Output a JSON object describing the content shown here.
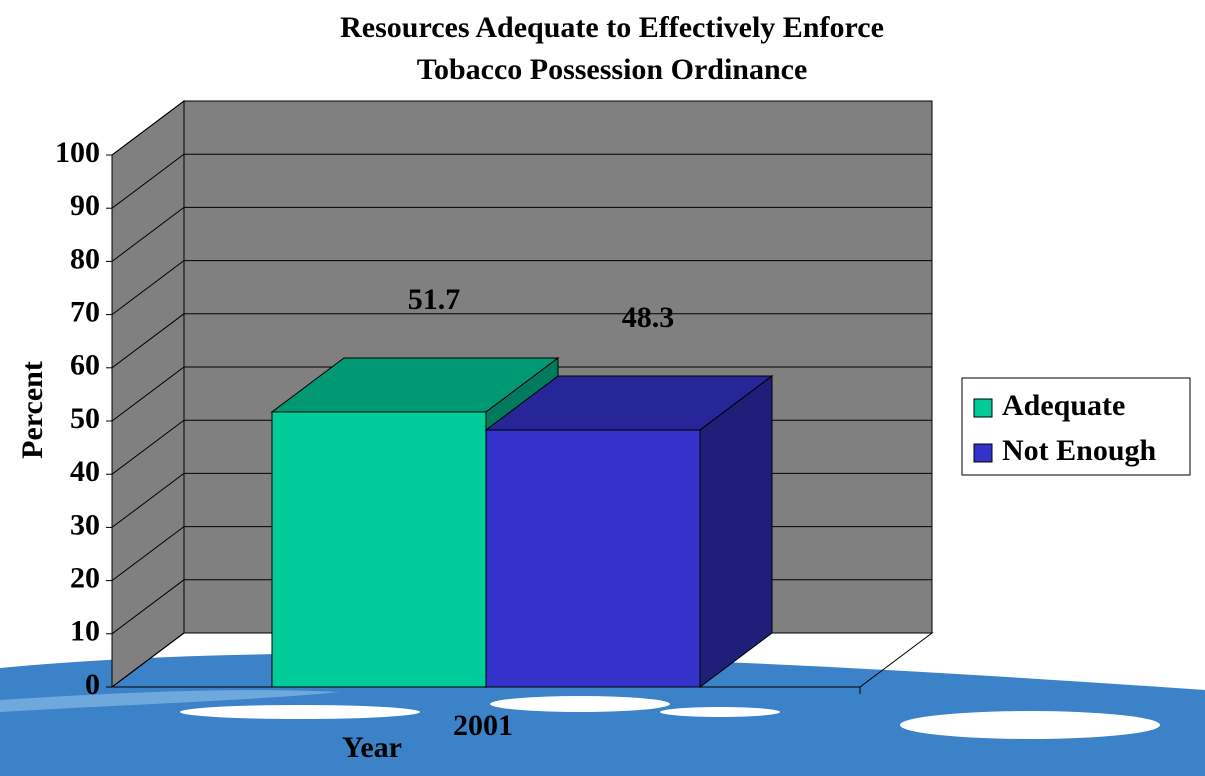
{
  "chart_data": {
    "type": "bar3d",
    "title": [
      "Resources Adequate to Effectively Enforce",
      "Tobacco Possession Ordinance"
    ],
    "x_label": "Year",
    "y_label": "Percent",
    "categories": [
      "2001"
    ],
    "series": [
      {
        "name": "Adequate",
        "color": "#00cc99",
        "values": [
          51.7
        ]
      },
      {
        "name": "Not Enough",
        "color": "#3333cc",
        "values": [
          48.3
        ]
      }
    ],
    "ylim": [
      0,
      100
    ],
    "yticks": [
      0,
      10,
      20,
      30,
      40,
      50,
      60,
      70,
      80,
      90,
      100
    ],
    "grid": true,
    "legend": "right"
  }
}
